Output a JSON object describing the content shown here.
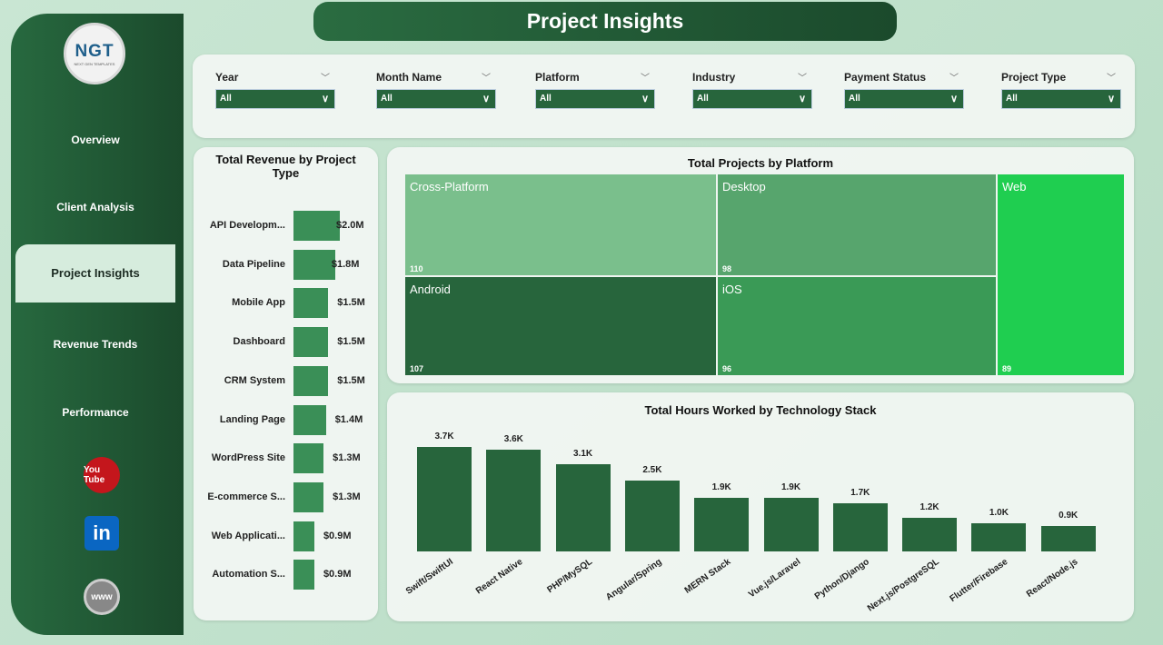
{
  "title": "Project Insights",
  "sidebar": {
    "logo_text": "NGT",
    "logo_subtext": "NEXT GEN TEMPLATES",
    "items": [
      {
        "label": "Overview"
      },
      {
        "label": "Client Analysis"
      },
      {
        "label": "Project Insights",
        "active": true
      },
      {
        "label": "Revenue Trends"
      },
      {
        "label": "Performance"
      }
    ],
    "social": [
      {
        "icon": "youtube-icon",
        "label": "You Tube"
      },
      {
        "icon": "linkedin-icon",
        "label": "in"
      },
      {
        "icon": "globe-icon",
        "label": "www"
      }
    ]
  },
  "filters": [
    {
      "label": "Year",
      "value": "All"
    },
    {
      "label": "Month Name",
      "value": "All"
    },
    {
      "label": "Platform",
      "value": "All"
    },
    {
      "label": "Industry",
      "value": "All"
    },
    {
      "label": "Payment Status",
      "value": "All"
    },
    {
      "label": "Project Type",
      "value": "All"
    }
  ],
  "chart_data": [
    {
      "type": "bar",
      "orientation": "horizontal",
      "title": "Total Revenue by Project Type",
      "categories": [
        "API Developm...",
        "Data Pipeline",
        "Mobile App",
        "Dashboard",
        "CRM System",
        "Landing Page",
        "WordPress Site",
        "E-commerce S...",
        "Web Applicati...",
        "Automation S..."
      ],
      "values": [
        2.0,
        1.8,
        1.5,
        1.5,
        1.5,
        1.4,
        1.3,
        1.3,
        0.9,
        0.9
      ],
      "labels": [
        "$2.0M",
        "$1.8M",
        "$1.5M",
        "$1.5M",
        "$1.5M",
        "$1.4M",
        "$1.3M",
        "$1.3M",
        "$0.9M",
        "$0.9M"
      ],
      "unit": "$M",
      "color": "#3a8f57"
    },
    {
      "type": "treemap",
      "title": "Total Projects by Platform",
      "categories": [
        "Cross-Platform",
        "Desktop",
        "Web",
        "Android",
        "iOS"
      ],
      "values": [
        110,
        98,
        89,
        107,
        96
      ],
      "colors": [
        "#7abf8c",
        "#57a56d",
        "#1fce50",
        "#27653c",
        "#3a9a56"
      ]
    },
    {
      "type": "bar",
      "title": "Total Hours Worked by Technology Stack",
      "categories": [
        "Swift/SwiftUI",
        "React Native",
        "PHP/MySQL",
        "Angular/Spring",
        "MERN Stack",
        "Vue.js/Laravel",
        "Python/Django",
        "Next.js/PostgreSQL",
        "Flutter/Firebase",
        "React/Node.js"
      ],
      "values": [
        3.7,
        3.6,
        3.1,
        2.5,
        1.9,
        1.9,
        1.7,
        1.2,
        1.0,
        0.9
      ],
      "labels": [
        "3.7K",
        "3.6K",
        "3.1K",
        "2.5K",
        "1.9K",
        "1.9K",
        "1.7K",
        "1.2K",
        "1.0K",
        "0.9K"
      ],
      "unit": "K hours",
      "color": "#27653c"
    }
  ]
}
